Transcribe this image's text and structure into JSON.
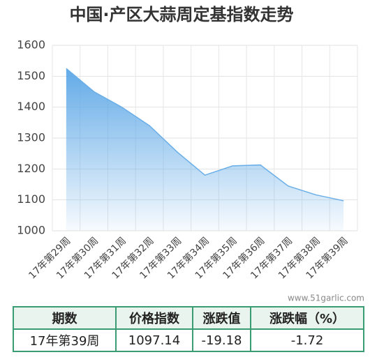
{
  "chart_data": {
    "type": "area",
    "title": "中国·产区大蒜周定基指数走势",
    "categories": [
      "17年第29周",
      "17年第30周",
      "17年第31周",
      "17年第32周",
      "17年第33周",
      "17年第34周",
      "17年第35周",
      "17年第36周",
      "17年第37周",
      "17年第38周",
      "17年第39周"
    ],
    "values": [
      1525,
      1450,
      1400,
      1340,
      1255,
      1180,
      1210,
      1213,
      1145,
      1116.32,
      1097.14
    ],
    "color": "#6aaee8",
    "ylim": [
      1000,
      1600
    ],
    "yticks": [
      1000,
      1100,
      1200,
      1300,
      1400,
      1500,
      1600
    ],
    "grid": true,
    "watermark": "www.51garlic.com"
  },
  "table": {
    "header": [
      "期数",
      "价格指数",
      "涨跌值",
      "涨跌幅（%）"
    ],
    "rows": [
      [
        "17年第39周",
        "1097.14",
        "-19.18",
        "-1.72"
      ]
    ]
  }
}
